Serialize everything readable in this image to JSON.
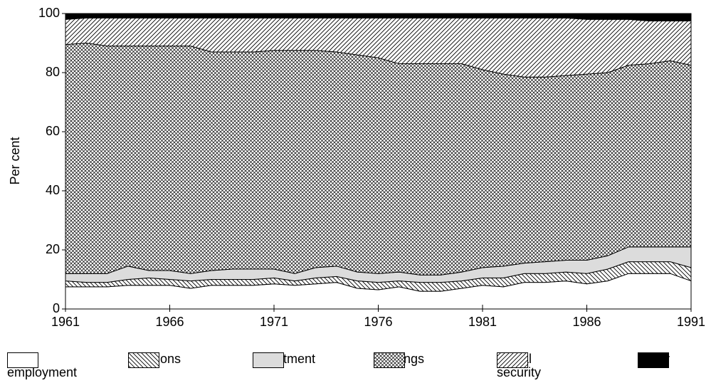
{
  "chart_data": {
    "type": "stacked-area",
    "y_label": "Per cent",
    "x": [
      1961,
      1962,
      1963,
      1964,
      1965,
      1966,
      1967,
      1968,
      1969,
      1970,
      1971,
      1972,
      1973,
      1974,
      1975,
      1976,
      1977,
      1978,
      1979,
      1980,
      1981,
      1982,
      1983,
      1984,
      1985,
      1986,
      1987,
      1988,
      1989,
      1990,
      1991
    ],
    "series": [
      {
        "name": "Self-employment",
        "values": [
          7.5,
          7.5,
          7.5,
          8,
          8,
          8,
          7,
          8,
          8,
          8,
          8.5,
          8,
          8.5,
          9,
          7,
          6.5,
          7.5,
          6,
          6,
          7,
          8,
          7.5,
          9,
          9,
          9.5,
          8.5,
          9.5,
          12,
          12,
          12,
          9.5
        ]
      },
      {
        "name": "Pensions",
        "values": [
          2,
          1.5,
          1.5,
          2,
          2.5,
          2,
          2.5,
          2,
          2,
          2,
          2,
          1.5,
          2,
          2,
          2.5,
          2.5,
          2,
          3,
          3,
          2.5,
          2.5,
          3,
          3,
          3,
          3,
          3.5,
          4,
          4,
          4,
          4,
          4.5
        ]
      },
      {
        "name": "Investment",
        "values": [
          2.5,
          3,
          3,
          4.5,
          2.5,
          3,
          2.5,
          3,
          3.5,
          3.5,
          3,
          2.5,
          3.5,
          3.5,
          3,
          3,
          3,
          2.5,
          2.5,
          3,
          3.5,
          4,
          3.5,
          4,
          4,
          4.5,
          4.5,
          5,
          5,
          5,
          7
        ]
      },
      {
        "name": "Earnings",
        "values": [
          77.5,
          78,
          77,
          74.5,
          76,
          76,
          77,
          74,
          73.5,
          73.5,
          74,
          75.5,
          73.5,
          72.5,
          73.5,
          73,
          70.5,
          71.5,
          71.5,
          70.5,
          67,
          65,
          63,
          62.5,
          62.5,
          63,
          62,
          61.5,
          62,
          63,
          61.5
        ]
      },
      {
        "name": "Social security",
        "values": [
          8.5,
          8.5,
          9.5,
          9.5,
          9.5,
          9.5,
          9.5,
          11.5,
          11.5,
          11.5,
          11,
          11,
          11,
          11.5,
          12.5,
          13.5,
          15.5,
          15.5,
          15.5,
          15.5,
          17.5,
          19,
          20,
          20,
          19.5,
          18.5,
          18,
          15.5,
          14.5,
          13.5,
          15
        ]
      },
      {
        "name": "Other",
        "values": [
          2,
          1.5,
          1.5,
          1.5,
          1.5,
          1.5,
          1.5,
          1.5,
          1.5,
          1.5,
          1.5,
          1.5,
          1.5,
          1.5,
          1.5,
          1.5,
          1.5,
          1.5,
          1.5,
          1.5,
          1.5,
          1.5,
          1.5,
          1.5,
          1.5,
          2,
          2,
          2,
          2.5,
          2.5,
          2.5
        ]
      }
    ],
    "xlim": [
      1961,
      1991
    ],
    "xticks": [
      1961,
      1966,
      1971,
      1976,
      1981,
      1986,
      1991
    ],
    "ylim": [
      0,
      100
    ],
    "yticks": [
      0,
      20,
      40,
      60,
      80,
      100
    ]
  }
}
